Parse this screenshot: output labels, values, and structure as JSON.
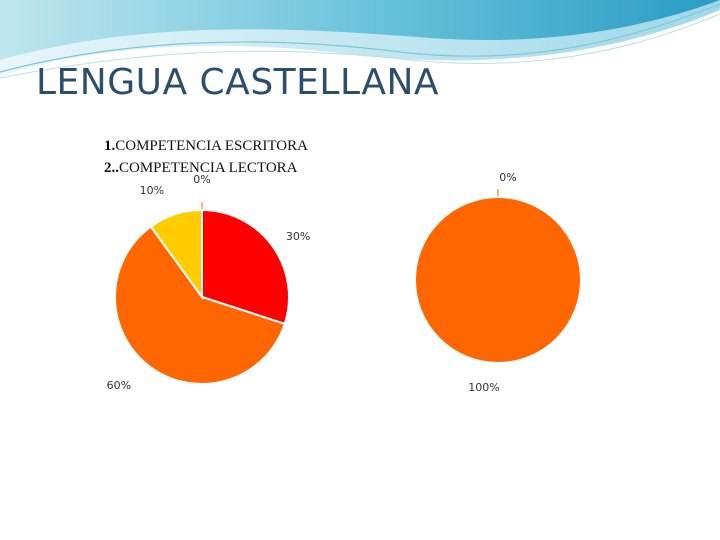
{
  "slide": {
    "title": "LENGUA CASTELLANA",
    "legend": [
      {
        "number": "1.",
        "label": "COMPETENCIA ESCRITORA"
      },
      {
        "number": "2..",
        "label": "COMPETENCIA LECTORA"
      }
    ]
  },
  "chart_data": [
    {
      "type": "pie",
      "categories": [
        "",
        "",
        "",
        ""
      ],
      "values": [
        0,
        30,
        60,
        10
      ],
      "data_labels": [
        "0%",
        "30%",
        "60%",
        "10%"
      ],
      "colors": [
        "#ff0000",
        "#ff0000",
        "#ff6600",
        "#ffcc00"
      ]
    },
    {
      "type": "pie",
      "categories": [
        "",
        ""
      ],
      "values": [
        0,
        100
      ],
      "data_labels": [
        "0%",
        "100%"
      ],
      "colors": [
        "#ff0000",
        "#ff6600"
      ]
    }
  ]
}
